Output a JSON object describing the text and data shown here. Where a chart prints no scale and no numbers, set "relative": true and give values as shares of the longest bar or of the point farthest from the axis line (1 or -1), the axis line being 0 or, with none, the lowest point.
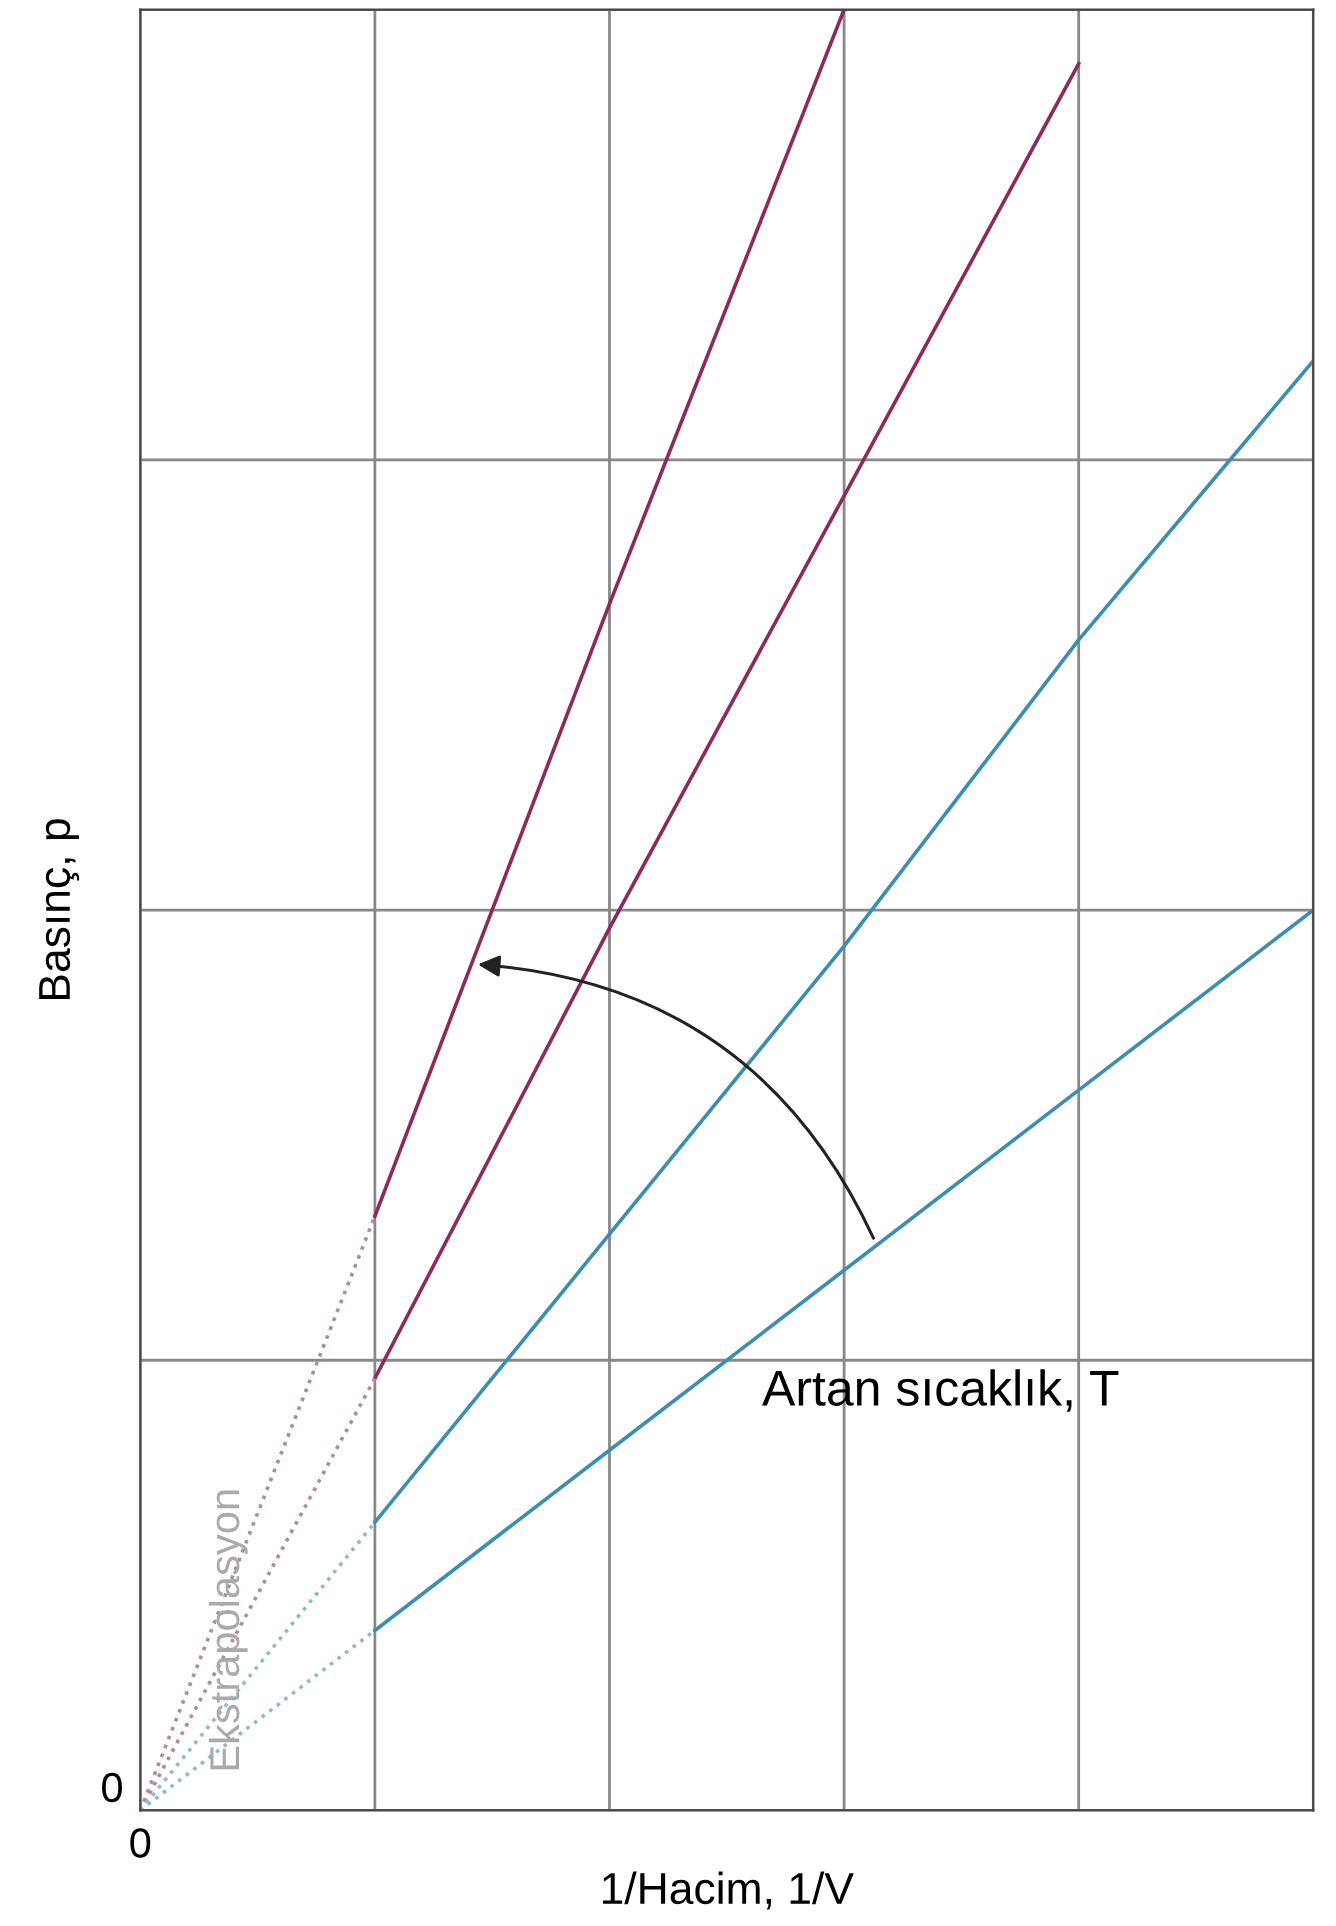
{
  "chart_data": {
    "type": "line",
    "relative": true,
    "xlabel": "1/Hacim, 1/V",
    "ylabel": "Basınç, p",
    "categories": [
      null,
      null,
      null,
      null,
      null,
      null
    ],
    "grid": true,
    "tick_labels": false,
    "marker": "none",
    "series": [
      {
        "color": "#8e2a5a",
        "values": [
          null,
          0.33,
          0.67,
          1.0,
          null,
          null
        ],
        "line_style": "solid"
      },
      {
        "color": "#8e2a5a",
        "values": [
          null,
          0.24,
          0.49,
          0.73,
          0.97,
          null
        ],
        "line_style": "solid"
      },
      {
        "color": "#3a8fb0",
        "values": [
          null,
          0.16,
          0.32,
          0.48,
          0.65,
          0.805
        ],
        "line_style": "solid"
      },
      {
        "color": "#3a8fb0",
        "values": [
          null,
          0.1,
          0.2,
          0.3,
          0.4,
          0.5
        ],
        "line_style": "solid"
      },
      {
        "color": "#b08aa0",
        "values": [
          0,
          0.33,
          null,
          null,
          null,
          null
        ],
        "line_style": "dotted"
      },
      {
        "color": "#b08aa0",
        "values": [
          0,
          0.24,
          null,
          null,
          null,
          null
        ],
        "line_style": "dotted"
      },
      {
        "color": "#8fbccc",
        "values": [
          0,
          0.16,
          null,
          null,
          null,
          null
        ],
        "line_style": "dotted"
      },
      {
        "color": "#8fbccc",
        "values": [
          0,
          0.1,
          null,
          null,
          null,
          null
        ],
        "line_style": "dotted"
      }
    ],
    "annotations": [
      "Artan sıcaklık, T",
      "Ekstrapolasyon",
      "0",
      "0"
    ]
  }
}
